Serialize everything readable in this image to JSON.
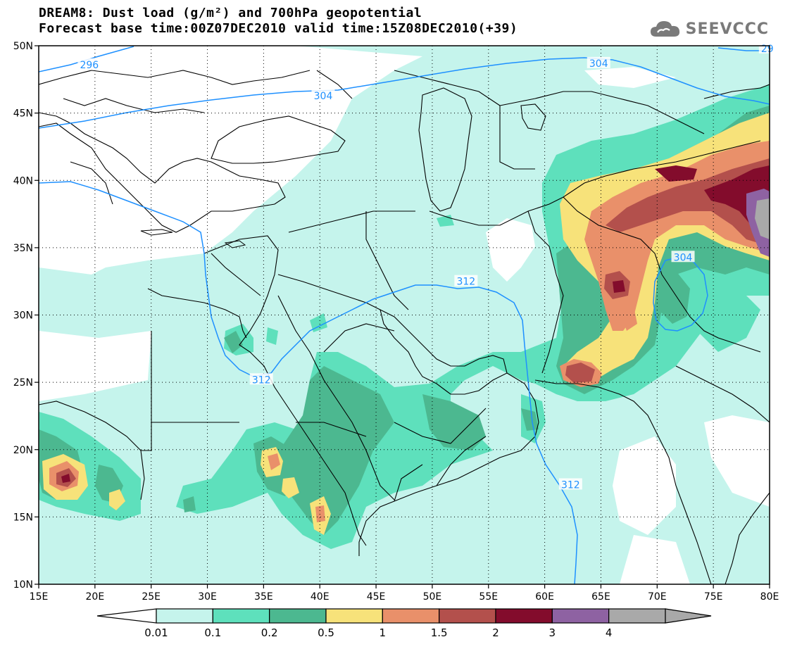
{
  "title": {
    "line1": "DREAM8: Dust load (g/m²) and 700hPa geopotential",
    "line2": "Forecast base time:00Z07DEC2010 valid time:15Z08DEC2010(+39)"
  },
  "logo": {
    "text": "SEEVCCC",
    "icon": "cloud-icon"
  },
  "map": {
    "lon_labels": [
      "15E",
      "20E",
      "25E",
      "30E",
      "35E",
      "40E",
      "45E",
      "50E",
      "55E",
      "60E",
      "65E",
      "70E",
      "75E",
      "80E"
    ],
    "lat_labels": [
      "50N",
      "45N",
      "40N",
      "35N",
      "30N",
      "25N",
      "20N",
      "15N",
      "10N"
    ],
    "contour_labels": [
      {
        "text": "296",
        "lon": 19.5,
        "lat": 48.6
      },
      {
        "text": "304",
        "lon": 40.3,
        "lat": 46.3
      },
      {
        "text": "304",
        "lon": 64.8,
        "lat": 48.7
      },
      {
        "text": "29",
        "lon": 79.8,
        "lat": 49.8
      },
      {
        "text": "304",
        "lon": 72.3,
        "lat": 34.3
      },
      {
        "text": "312",
        "lon": 53.0,
        "lat": 32.5
      },
      {
        "text": "312",
        "lon": 34.8,
        "lat": 25.2
      },
      {
        "text": "312",
        "lon": 62.3,
        "lat": 17.4
      }
    ],
    "contour_color": "#1e90ff"
  },
  "colorbar": {
    "labels": [
      "0.01",
      "0.1",
      "0.2",
      "0.5",
      "1",
      "1.5",
      "2",
      "3",
      "4"
    ],
    "colors": [
      "#c5f4ec",
      "#5ee0bc",
      "#4cb890",
      "#f7e27a",
      "#e9906a",
      "#b3504c",
      "#830c2c",
      "#8e62a2",
      "#a9a9a9"
    ],
    "under_color": "#ffffff"
  }
}
